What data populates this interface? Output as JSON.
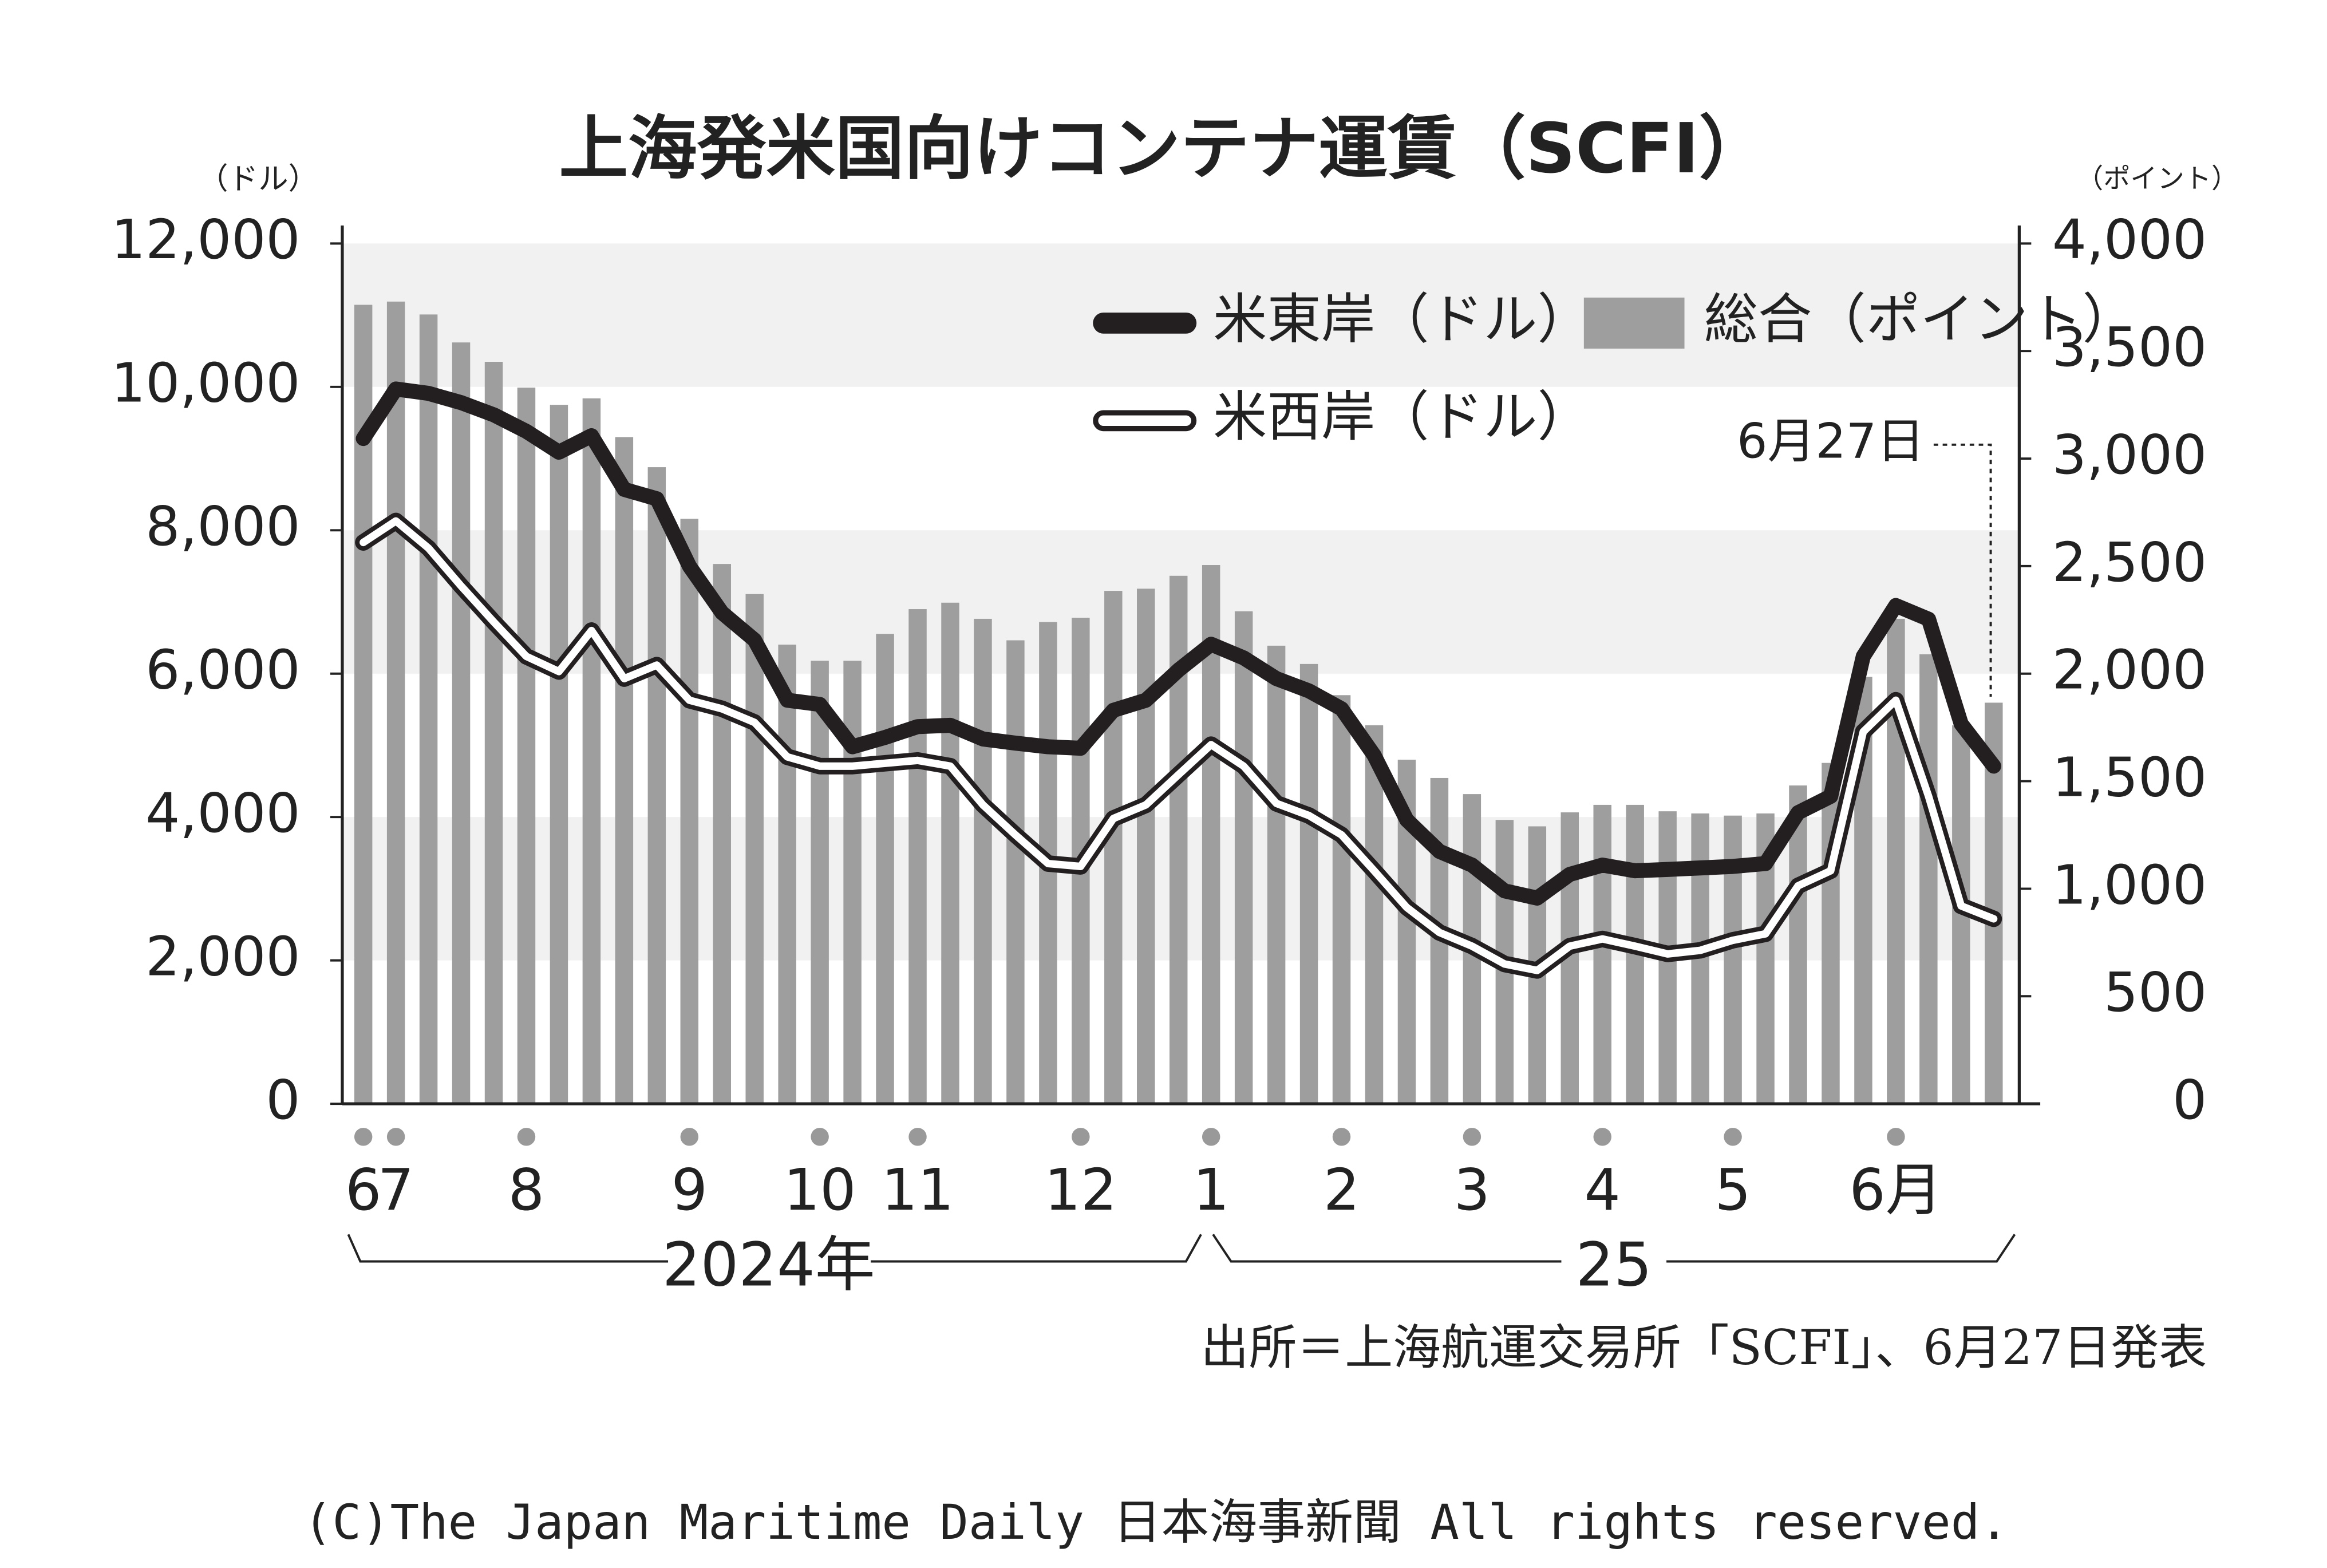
{
  "chart_data": {
    "type": "line",
    "title": "上海発米国向けコンテナ運賃（SCFI）",
    "y_label": "（ドル）",
    "y2_label": "（ポイント）",
    "categories": [
      "6",
      "7",
      null,
      null,
      null,
      "8",
      null,
      null,
      null,
      null,
      "9",
      null,
      null,
      null,
      "10",
      null,
      null,
      "11",
      null,
      null,
      null,
      null,
      "12",
      null,
      null,
      null,
      "1",
      null,
      null,
      null,
      "2",
      null,
      null,
      null,
      "3",
      null,
      null,
      null,
      "4",
      null,
      null,
      null,
      "5",
      null,
      null,
      null,
      null,
      "6月",
      null,
      null,
      null
    ],
    "series": [
      {
        "name": "総合（ポイント）",
        "type": "bar",
        "axis": "y2",
        "color": "#9e9e9e",
        "values": [
          3715,
          3730,
          3670,
          3540,
          3450,
          3330,
          3250,
          3280,
          3100,
          2960,
          2720,
          2510,
          2370,
          2135,
          2060,
          2060,
          2185,
          2300,
          2330,
          2255,
          2155,
          2240,
          2260,
          2385,
          2395,
          2455,
          2505,
          2290,
          2130,
          2045,
          1900,
          1760,
          1600,
          1515,
          1440,
          1320,
          1290,
          1355,
          1390,
          1390,
          1360,
          1350,
          1340,
          1350,
          1480,
          1585,
          1985,
          2255,
          2090,
          1760,
          1865
        ]
      },
      {
        "name": "米東岸（ドル）",
        "type": "line",
        "axis": "y",
        "color": "#231f20",
        "values": [
          9280,
          9970,
          9910,
          9780,
          9610,
          9380,
          9090,
          9320,
          8570,
          8440,
          7500,
          6850,
          6470,
          5630,
          5570,
          4980,
          5110,
          5260,
          5280,
          5090,
          5030,
          4980,
          4960,
          5490,
          5630,
          6050,
          6410,
          6220,
          5930,
          5760,
          5510,
          4860,
          3960,
          3520,
          3330,
          2970,
          2870,
          3200,
          3330,
          3250,
          3270,
          3290,
          3310,
          3350,
          4060,
          4290,
          6240,
          6950,
          6760,
          5300,
          4710
        ]
      },
      {
        "name": "米西岸（ドル）",
        "type": "line",
        "axis": "y",
        "color": "#ffffff",
        "values": [
          7830,
          8130,
          7750,
          7220,
          6720,
          6240,
          6030,
          6600,
          5930,
          6120,
          5630,
          5510,
          5320,
          4840,
          4710,
          4710,
          4750,
          4790,
          4710,
          4170,
          3750,
          3350,
          3310,
          3980,
          4170,
          4590,
          5010,
          4710,
          4190,
          4020,
          3750,
          3250,
          2740,
          2390,
          2200,
          1950,
          1860,
          2200,
          2300,
          2200,
          2090,
          2140,
          2280,
          2370,
          3040,
          3250,
          5190,
          5630,
          4290,
          2760,
          2580
        ]
      }
    ],
    "ylim": [
      0,
      12000
    ],
    "yticks": [
      0,
      {
        "value": 2000,
        "label": "2,000"
      },
      {
        "value": 4000,
        "label": "4,000"
      },
      {
        "value": 6000,
        "label": "6,000"
      },
      {
        "value": 8000,
        "label": "8,000"
      },
      {
        "value": 10000,
        "label": "10,000"
      },
      {
        "value": 12000,
        "label": "12,000"
      }
    ],
    "y2lim": [
      0,
      4000
    ],
    "y2ticks": [
      0,
      500,
      {
        "value": 1000,
        "label": "1,000"
      },
      {
        "value": 1500,
        "label": "1,500"
      },
      {
        "value": 2000,
        "label": "2,000"
      },
      {
        "value": 2500,
        "label": "2,500"
      },
      {
        "value": 3000,
        "label": "3,000"
      },
      {
        "value": 3500,
        "label": "3,500"
      },
      {
        "value": 4000,
        "label": "4,000"
      }
    ],
    "annotation": "6月27日",
    "year_labels": [
      "2024年",
      "25"
    ],
    "source": "出所＝上海航運交易所「SCFI」、6月27日発表",
    "copyright": "(C)The Japan Maritime Daily 日本海事新聞 All rights reserved."
  }
}
